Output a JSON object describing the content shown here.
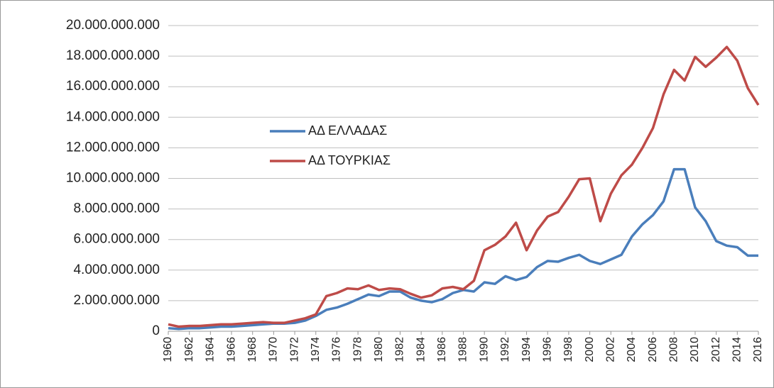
{
  "chart_data": {
    "type": "line",
    "x": [
      1960,
      1961,
      1962,
      1963,
      1964,
      1965,
      1966,
      1967,
      1968,
      1969,
      1970,
      1971,
      1972,
      1973,
      1974,
      1975,
      1976,
      1977,
      1978,
      1979,
      1980,
      1981,
      1982,
      1983,
      1984,
      1985,
      1986,
      1987,
      1988,
      1989,
      1990,
      1991,
      1992,
      1993,
      1994,
      1995,
      1996,
      1997,
      1998,
      1999,
      2000,
      2001,
      2002,
      2003,
      2004,
      2005,
      2006,
      2007,
      2008,
      2009,
      2010,
      2011,
      2012,
      2013,
      2014,
      2015,
      2016
    ],
    "xlim": [
      1960,
      2016
    ],
    "xticks": [
      1960,
      1962,
      1964,
      1966,
      1968,
      1970,
      1972,
      1974,
      1976,
      1978,
      1980,
      1982,
      1984,
      1986,
      1988,
      1990,
      1992,
      1994,
      1996,
      1998,
      2000,
      2002,
      2004,
      2006,
      2008,
      2010,
      2012,
      2014,
      2016
    ],
    "ylim": [
      0,
      20000000000
    ],
    "yticks": [
      0,
      {
        "value": 2000000000,
        "label": "2.000.000.000"
      },
      {
        "value": 4000000000,
        "label": "4.000.000.000"
      },
      {
        "value": 6000000000,
        "label": "6.000.000.000"
      },
      {
        "value": 8000000000,
        "label": "8.000.000.000"
      },
      {
        "value": 10000000000,
        "label": "10.000.000.000"
      },
      {
        "value": 12000000000,
        "label": "12.000.000.000"
      },
      {
        "value": 14000000000,
        "label": "14.000.000.000"
      },
      {
        "value": 16000000000,
        "label": "16.000.000.000"
      },
      {
        "value": 18000000000,
        "label": "18.000.000.000"
      },
      {
        "value": 20000000000,
        "label": "20.000.000.000"
      }
    ],
    "grid": true,
    "series": [
      {
        "name": "ΑΔ ΕΛΛΑΔΑΣ",
        "color": "#4a7ebb",
        "values": [
          200000000,
          150000000,
          200000000,
          200000000,
          250000000,
          300000000,
          300000000,
          350000000,
          400000000,
          450000000,
          500000000,
          500000000,
          550000000,
          700000000,
          1000000000,
          1400000000,
          1550000000,
          1800000000,
          2100000000,
          2400000000,
          2300000000,
          2600000000,
          2600000000,
          2200000000,
          2000000000,
          1900000000,
          2100000000,
          2500000000,
          2700000000,
          2600000000,
          3200000000,
          3100000000,
          3600000000,
          3350000000,
          3550000000,
          4200000000,
          4600000000,
          4550000000,
          4800000000,
          5000000000,
          4600000000,
          4400000000,
          4700000000,
          5000000000,
          6200000000,
          7000000000,
          7600000000,
          8500000000,
          10600000000,
          10600000000,
          8100000000,
          7200000000,
          5900000000,
          5600000000,
          5500000000,
          4950000000,
          4950000000
        ]
      },
      {
        "name": "ΑΔ ΤΟΥΡΚΙΑΣ",
        "color": "#be4b48",
        "values": [
          450000000,
          300000000,
          350000000,
          350000000,
          400000000,
          450000000,
          450000000,
          500000000,
          550000000,
          600000000,
          550000000,
          550000000,
          700000000,
          850000000,
          1100000000,
          2300000000,
          2500000000,
          2800000000,
          2750000000,
          3000000000,
          2700000000,
          2800000000,
          2750000000,
          2450000000,
          2200000000,
          2350000000,
          2800000000,
          2900000000,
          2750000000,
          3300000000,
          5300000000,
          5650000000,
          6200000000,
          7100000000,
          5300000000,
          6600000000,
          7500000000,
          7800000000,
          8800000000,
          9950000000,
          10000000000,
          7200000000,
          9000000000,
          10200000000,
          10900000000,
          12000000000,
          13300000000,
          15500000000,
          17100000000,
          16400000000,
          17950000000,
          17300000000,
          17900000000,
          18600000000,
          17700000000,
          15900000000,
          14800000000
        ]
      }
    ]
  }
}
